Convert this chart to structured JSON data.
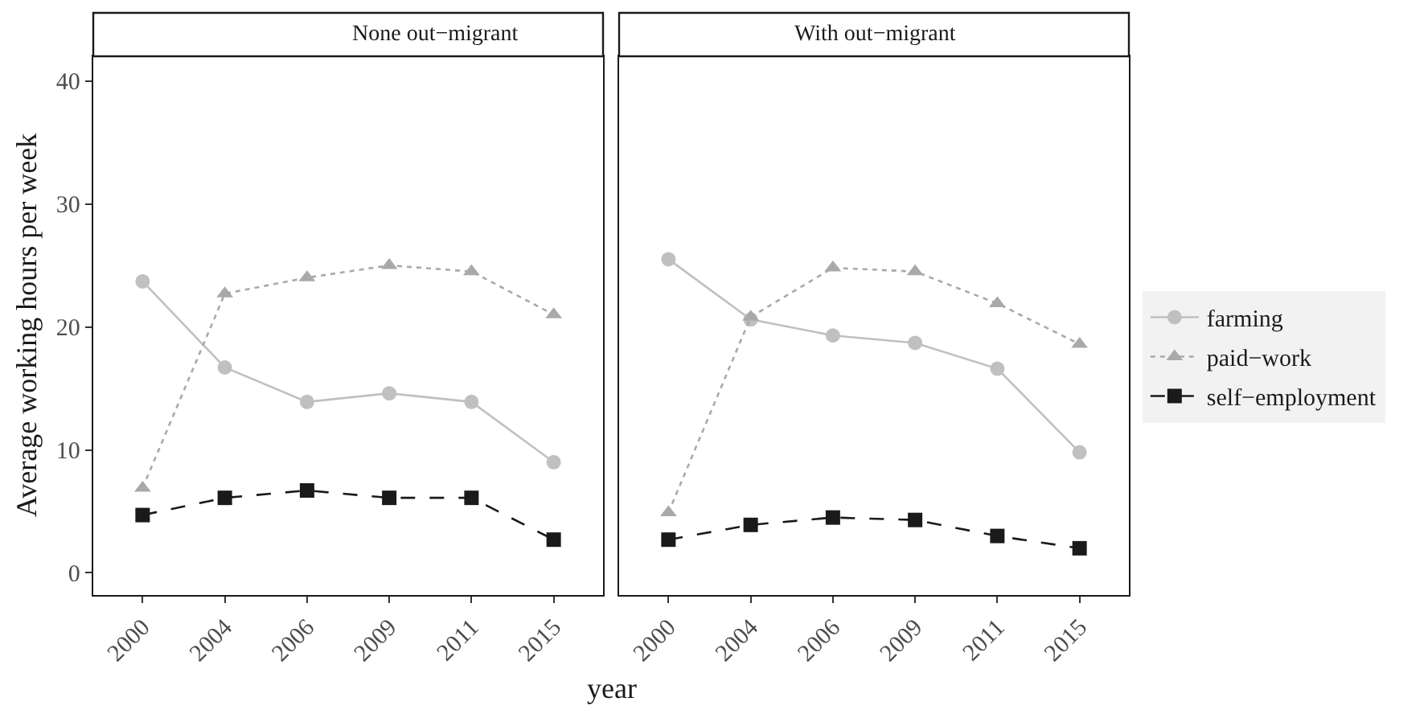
{
  "chart_data": [
    {
      "type": "line",
      "title": "None out−migrant",
      "xlabel": "year",
      "ylabel": "Average working hours per week",
      "categories": [
        "2000",
        "2004",
        "2006",
        "2009",
        "2011",
        "2015"
      ],
      "ylim": [
        -1.8,
        42
      ],
      "yticks": [
        0,
        10,
        20,
        30,
        40
      ],
      "legend": "right",
      "series": [
        {
          "name": "farming",
          "color": "#c0c0c0",
          "marker": "circle",
          "line_style": "solid",
          "values": [
            23.7,
            16.7,
            13.9,
            14.6,
            13.9,
            9.0
          ]
        },
        {
          "name": "paid−work",
          "color": "#a9a9a9",
          "marker": "triangle",
          "line_style": "dotted",
          "values": [
            6.9,
            22.7,
            24.0,
            25.0,
            24.5,
            21.0
          ]
        },
        {
          "name": "self−employment",
          "color": "#1a1a1a",
          "marker": "square",
          "line_style": "dashed",
          "values": [
            4.7,
            6.1,
            6.7,
            6.1,
            6.1,
            2.7
          ]
        }
      ]
    },
    {
      "type": "line",
      "title": "With out−migrant",
      "categories": [
        "2000",
        "2004",
        "2006",
        "2009",
        "2011",
        "2015"
      ],
      "ylim": [
        -1.8,
        42
      ],
      "tick_labels": "x",
      "series": [
        {
          "color": "#c0c0c0",
          "marker": "circle",
          "line_style": "solid",
          "values": [
            25.5,
            20.6,
            19.3,
            18.7,
            16.6,
            9.8
          ]
        },
        {
          "color": "#a9a9a9",
          "marker": "triangle",
          "line_style": "dotted",
          "values": [
            4.9,
            20.8,
            24.8,
            24.5,
            21.9,
            18.6
          ]
        },
        {
          "color": "#1a1a1a",
          "marker": "square",
          "line_style": "dashed",
          "values": [
            2.7,
            3.9,
            4.5,
            4.3,
            3.0,
            2.0
          ]
        }
      ]
    }
  ]
}
